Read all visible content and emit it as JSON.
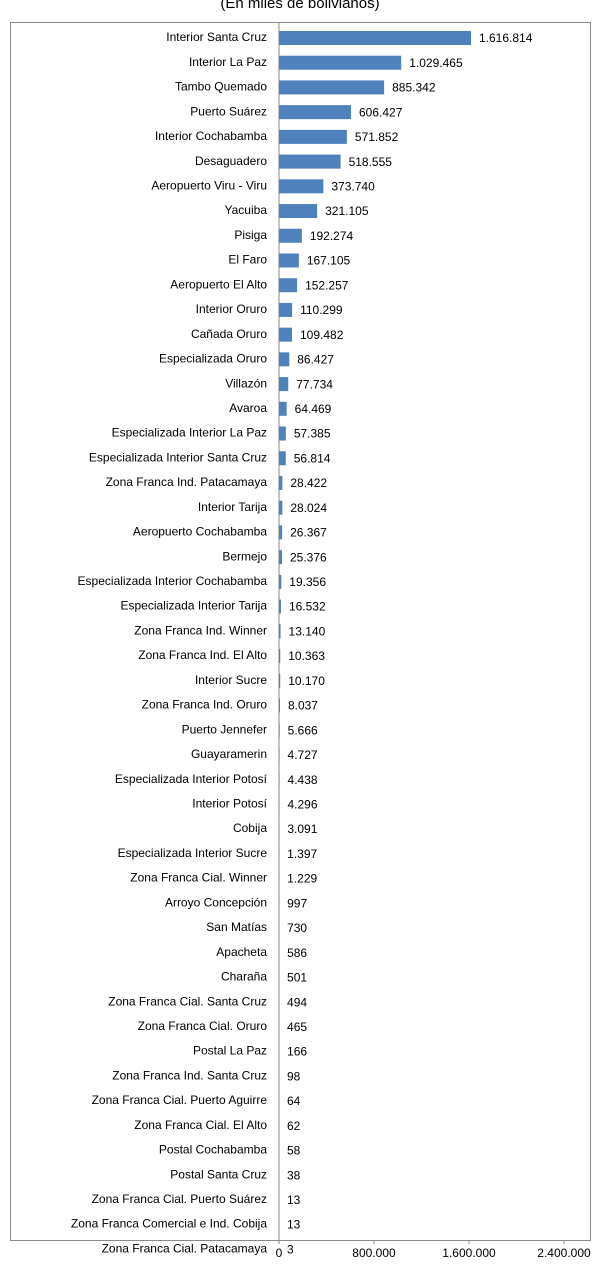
{
  "chart_data": {
    "type": "bar",
    "orientation": "horizontal",
    "subtitle": "(En miles de bolivianos)",
    "categories": [
      "Interior Santa Cruz",
      "Interior La Paz",
      "Tambo Quemado",
      "Puerto Suárez",
      "Interior Cochabamba",
      "Desaguadero",
      "Aeropuerto Viru - Viru",
      "Yacuiba",
      "Pisiga",
      "El Faro",
      "Aeropuerto El Alto",
      "Interior Oruro",
      "Cañada Oruro",
      "Especializada Oruro",
      "Villazón",
      "Avaroa",
      "Especializada Interior La Paz",
      "Especializada Interior Santa Cruz",
      "Zona Franca Ind. Patacamaya",
      "Interior Tarija",
      "Aeropuerto Cochabamba",
      "Bermejo",
      "Especializada Interior Cochabamba",
      "Especializada Interior Tarija",
      "Zona Franca Ind. Winner",
      "Zona Franca Ind. El Alto",
      "Interior Sucre",
      "Zona Franca Ind. Oruro",
      "Puerto Jennefer",
      "Guayaramerin",
      "Especializada Interior Potosí",
      "Interior Potosí",
      "Cobija",
      "Especializada Interior Sucre",
      "Zona Franca Cial. Winner",
      "Arroyo Concepción",
      "San Matías",
      "Apacheta",
      "Charaña",
      "Zona Franca Cial. Santa Cruz",
      "Zona Franca Cial. Oruro",
      "Postal La Paz",
      "Zona Franca Ind. Santa Cruz",
      "Zona Franca Cial. Puerto Aguirre",
      "Zona Franca Cial. El Alto",
      "Postal Cochabamba",
      "Postal Santa Cruz",
      "Zona Franca Cial. Puerto Suárez",
      "Zona Franca Comercial e Ind. Cobija",
      "Zona Franca Cial. Patacamaya"
    ],
    "values": [
      1616814,
      1029465,
      885342,
      606427,
      571852,
      518555,
      373740,
      321105,
      192274,
      167105,
      152257,
      110299,
      109482,
      86427,
      77734,
      64469,
      57385,
      56814,
      28422,
      28024,
      26367,
      25376,
      19356,
      16532,
      13140,
      10363,
      10170,
      8037,
      5666,
      4727,
      4438,
      4296,
      3091,
      1397,
      1229,
      997,
      730,
      586,
      501,
      494,
      465,
      166,
      98,
      64,
      62,
      58,
      38,
      13,
      13,
      3
    ],
    "value_labels": [
      "1.616.814",
      "1.029.465",
      "885.342",
      "606.427",
      "571.852",
      "518.555",
      "373.740",
      "321.105",
      "192.274",
      "167.105",
      "152.257",
      "110.299",
      "109.482",
      "86.427",
      "77.734",
      "64.469",
      "57.385",
      "56.814",
      "28.422",
      "28.024",
      "26.367",
      "25.376",
      "19.356",
      "16.532",
      "13.140",
      "10.363",
      "10.170",
      "8.037",
      "5.666",
      "4.727",
      "4.438",
      "4.296",
      "3.091",
      "1.397",
      "1.229",
      "997",
      "730",
      "586",
      "501",
      "494",
      "465",
      "166",
      "98",
      "64",
      "62",
      "58",
      "38",
      "13",
      "13",
      "3"
    ],
    "color": "#4f81bd",
    "xlim": [
      0,
      2400000
    ],
    "xticks": [
      0,
      {
        "value": 800000,
        "label": "800.000"
      },
      {
        "value": 1600000,
        "label": "1.600.000"
      },
      {
        "value": 2400000,
        "label": "2.400.000"
      }
    ],
    "grid": false
  }
}
